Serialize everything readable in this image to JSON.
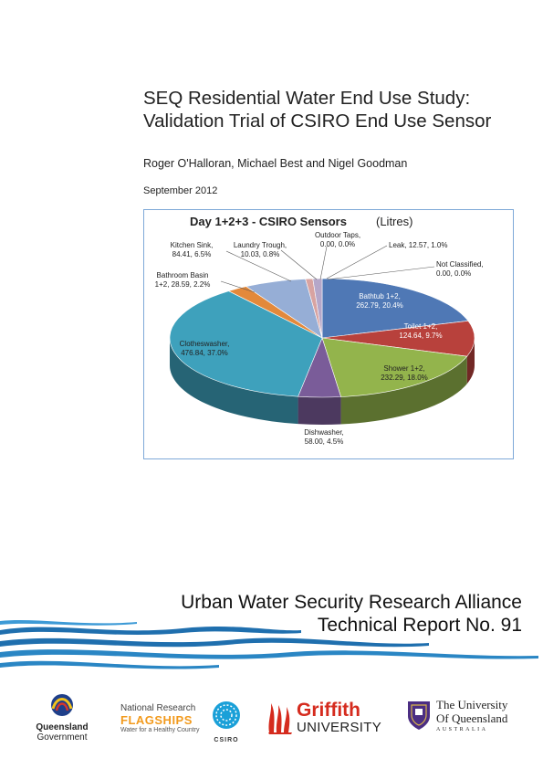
{
  "document": {
    "title_line1": "SEQ Residential Water End Use Study:",
    "title_line2": "Validation Trial of CSIRO End Use Sensor",
    "authors": "Roger O'Halloran, Michael Best and Nigel Goodman",
    "date": "September 2012",
    "report_line1": "Urban Water Security Research Alliance",
    "report_line2": "Technical Report No. 91"
  },
  "chart_data": {
    "type": "pie",
    "title": "Day 1+2+3 - CSIRO Sensors",
    "title_unit": "(Litres)",
    "slices": [
      {
        "label_line1": "Bathtub 1+2,",
        "label_line2": "262.79, 20.4%",
        "value": 262.79,
        "percent": 20.4,
        "color": "#4f78b5"
      },
      {
        "label_line1": "Toilet 1+2,",
        "label_line2": "124.64, 9.7%",
        "value": 124.64,
        "percent": 9.7,
        "color": "#b8413c"
      },
      {
        "label_line1": "Shower 1+2,",
        "label_line2": "232.29, 18.0%",
        "value": 232.29,
        "percent": 18.0,
        "color": "#93b44c"
      },
      {
        "label_line1": "Dishwasher,",
        "label_line2": "58.00, 4.5%",
        "value": 58.0,
        "percent": 4.5,
        "color": "#7a5c99"
      },
      {
        "label_line1": "Clotheswasher,",
        "label_line2": "476.84, 37.0%",
        "value": 476.84,
        "percent": 37.0,
        "color": "#3ea1bc"
      },
      {
        "label_line1": "Bathroom Basin",
        "label_line2": "1+2, 28.59, 2.2%",
        "value": 28.59,
        "percent": 2.2,
        "color": "#e3893b"
      },
      {
        "label_line1": "Kitchen Sink,",
        "label_line2": "84.41, 6.5%",
        "value": 84.41,
        "percent": 6.5,
        "color": "#96aed6"
      },
      {
        "label_line1": "Laundry Trough,",
        "label_line2": "10.03, 0.8%",
        "value": 10.03,
        "percent": 0.8,
        "color": "#d8a3a1"
      },
      {
        "label_line1": "Outdoor Taps,",
        "label_line2": "0.00, 0.0%",
        "value": 0.0,
        "percent": 0.0,
        "color": "#c5d7a4"
      },
      {
        "label_line1": "Leak, 12.57, 1.0%",
        "label_line2": "",
        "value": 12.57,
        "percent": 1.0,
        "color": "#b5a7c9"
      },
      {
        "label_line1": "Not Classified,",
        "label_line2": "0.00, 0.0%",
        "value": 0.0,
        "percent": 0.0,
        "color": "#99cfe0"
      }
    ]
  },
  "logos": {
    "queensland_line1": "Queensland",
    "queensland_line2": "Government",
    "nrf_line1": "National Research",
    "nrf_line2": "FLAGSHIPS",
    "nrf_line3": "Water for a Healthy Country",
    "csiro": "CSIRO",
    "griffith_line1": "Griffith",
    "griffith_line2": "UNIVERSITY",
    "uq_line1": "The University",
    "uq_line2": "Of Queensland",
    "uq_line3": "AUSTRALIA"
  }
}
